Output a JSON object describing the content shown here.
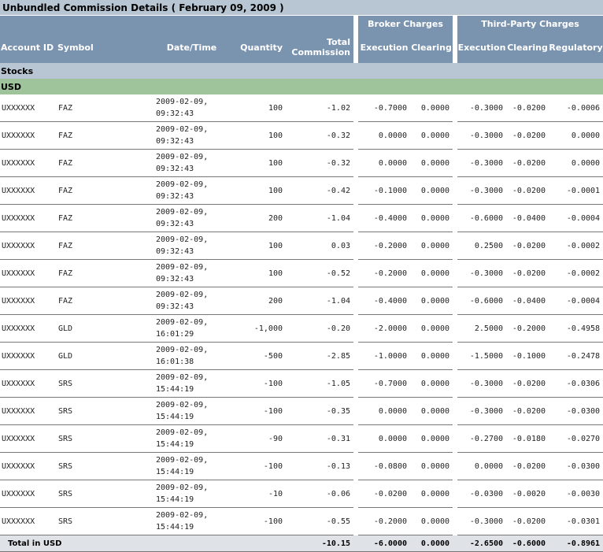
{
  "title": "Unbundled Commission Details ( February 09, 2009 )",
  "groups": {
    "broker": "Broker Charges",
    "third_party": "Third-Party Charges"
  },
  "columns": {
    "account_id": "Account ID",
    "symbol": "Symbol",
    "datetime": "Date/Time",
    "quantity": "Quantity",
    "total_commission_line1": "Total",
    "total_commission_line2": "Commission",
    "broker_execution": "Execution",
    "broker_clearing": "Clearing",
    "tp_execution": "Execution",
    "tp_clearing": "Clearing",
    "tp_regulatory": "Regulatory"
  },
  "section": "Stocks",
  "currency": "USD",
  "rows": [
    {
      "account": "UXXXXXX",
      "symbol": "FAZ",
      "date": "2009-02-09,",
      "time": "09:32:43",
      "qty": "100",
      "total": "-1.02",
      "b_exec": "-0.7000",
      "b_clear": "0.0000",
      "t_exec": "-0.3000",
      "t_clear": "-0.0200",
      "t_reg": "-0.0006"
    },
    {
      "account": "UXXXXXX",
      "symbol": "FAZ",
      "date": "2009-02-09,",
      "time": "09:32:43",
      "qty": "100",
      "total": "-0.32",
      "b_exec": "0.0000",
      "b_clear": "0.0000",
      "t_exec": "-0.3000",
      "t_clear": "-0.0200",
      "t_reg": "0.0000"
    },
    {
      "account": "UXXXXXX",
      "symbol": "FAZ",
      "date": "2009-02-09,",
      "time": "09:32:43",
      "qty": "100",
      "total": "-0.32",
      "b_exec": "0.0000",
      "b_clear": "0.0000",
      "t_exec": "-0.3000",
      "t_clear": "-0.0200",
      "t_reg": "0.0000"
    },
    {
      "account": "UXXXXXX",
      "symbol": "FAZ",
      "date": "2009-02-09,",
      "time": "09:32:43",
      "qty": "100",
      "total": "-0.42",
      "b_exec": "-0.1000",
      "b_clear": "0.0000",
      "t_exec": "-0.3000",
      "t_clear": "-0.0200",
      "t_reg": "-0.0001"
    },
    {
      "account": "UXXXXXX",
      "symbol": "FAZ",
      "date": "2009-02-09,",
      "time": "09:32:43",
      "qty": "200",
      "total": "-1.04",
      "b_exec": "-0.4000",
      "b_clear": "0.0000",
      "t_exec": "-0.6000",
      "t_clear": "-0.0400",
      "t_reg": "-0.0004"
    },
    {
      "account": "UXXXXXX",
      "symbol": "FAZ",
      "date": "2009-02-09,",
      "time": "09:32:43",
      "qty": "100",
      "total": "0.03",
      "b_exec": "-0.2000",
      "b_clear": "0.0000",
      "t_exec": "0.2500",
      "t_clear": "-0.0200",
      "t_reg": "-0.0002"
    },
    {
      "account": "UXXXXXX",
      "symbol": "FAZ",
      "date": "2009-02-09,",
      "time": "09:32:43",
      "qty": "100",
      "total": "-0.52",
      "b_exec": "-0.2000",
      "b_clear": "0.0000",
      "t_exec": "-0.3000",
      "t_clear": "-0.0200",
      "t_reg": "-0.0002"
    },
    {
      "account": "UXXXXXX",
      "symbol": "FAZ",
      "date": "2009-02-09,",
      "time": "09:32:43",
      "qty": "200",
      "total": "-1.04",
      "b_exec": "-0.4000",
      "b_clear": "0.0000",
      "t_exec": "-0.6000",
      "t_clear": "-0.0400",
      "t_reg": "-0.0004"
    },
    {
      "account": "UXXXXXX",
      "symbol": "GLD",
      "date": "2009-02-09,",
      "time": "16:01:29",
      "qty": "-1,000",
      "total": "-0.20",
      "b_exec": "-2.0000",
      "b_clear": "0.0000",
      "t_exec": "2.5000",
      "t_clear": "-0.2000",
      "t_reg": "-0.4958"
    },
    {
      "account": "UXXXXXX",
      "symbol": "GLD",
      "date": "2009-02-09,",
      "time": "16:01:38",
      "qty": "-500",
      "total": "-2.85",
      "b_exec": "-1.0000",
      "b_clear": "0.0000",
      "t_exec": "-1.5000",
      "t_clear": "-0.1000",
      "t_reg": "-0.2478"
    },
    {
      "account": "UXXXXXX",
      "symbol": "SRS",
      "date": "2009-02-09,",
      "time": "15:44:19",
      "qty": "-100",
      "total": "-1.05",
      "b_exec": "-0.7000",
      "b_clear": "0.0000",
      "t_exec": "-0.3000",
      "t_clear": "-0.0200",
      "t_reg": "-0.0306"
    },
    {
      "account": "UXXXXXX",
      "symbol": "SRS",
      "date": "2009-02-09,",
      "time": "15:44:19",
      "qty": "-100",
      "total": "-0.35",
      "b_exec": "0.0000",
      "b_clear": "0.0000",
      "t_exec": "-0.3000",
      "t_clear": "-0.0200",
      "t_reg": "-0.0300"
    },
    {
      "account": "UXXXXXX",
      "symbol": "SRS",
      "date": "2009-02-09,",
      "time": "15:44:19",
      "qty": "-90",
      "total": "-0.31",
      "b_exec": "0.0000",
      "b_clear": "0.0000",
      "t_exec": "-0.2700",
      "t_clear": "-0.0180",
      "t_reg": "-0.0270"
    },
    {
      "account": "UXXXXXX",
      "symbol": "SRS",
      "date": "2009-02-09,",
      "time": "15:44:19",
      "qty": "-100",
      "total": "-0.13",
      "b_exec": "-0.0800",
      "b_clear": "0.0000",
      "t_exec": "0.0000",
      "t_clear": "-0.0200",
      "t_reg": "-0.0300"
    },
    {
      "account": "UXXXXXX",
      "symbol": "SRS",
      "date": "2009-02-09,",
      "time": "15:44:19",
      "qty": "-10",
      "total": "-0.06",
      "b_exec": "-0.0200",
      "b_clear": "0.0000",
      "t_exec": "-0.0300",
      "t_clear": "-0.0020",
      "t_reg": "-0.0030"
    },
    {
      "account": "UXXXXXX",
      "symbol": "SRS",
      "date": "2009-02-09,",
      "time": "15:44:19",
      "qty": "-100",
      "total": "-0.55",
      "b_exec": "-0.2000",
      "b_clear": "0.0000",
      "t_exec": "-0.3000",
      "t_clear": "-0.0200",
      "t_reg": "-0.0301"
    }
  ],
  "total": {
    "label": "Total in USD",
    "total": "-10.15",
    "b_exec": "-6.0000",
    "b_clear": "0.0000",
    "t_exec": "-2.6500",
    "t_clear": "-0.6000",
    "t_reg": "-0.8961"
  }
}
